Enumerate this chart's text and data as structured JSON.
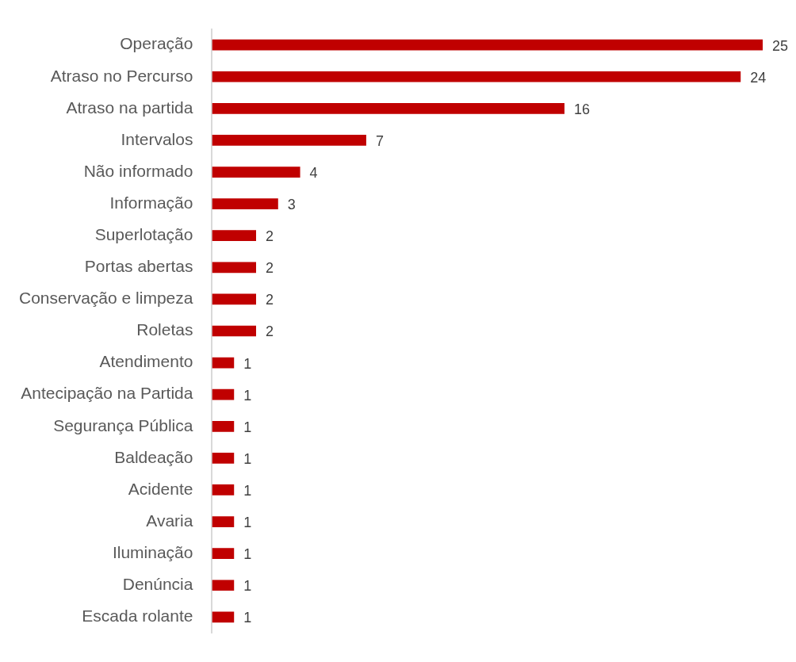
{
  "chart_data": {
    "type": "bar",
    "orientation": "horizontal",
    "categories": [
      "Operação",
      "Atraso no Percurso",
      "Atraso na partida",
      "Intervalos",
      "Não informado",
      "Informação",
      "Superlotação",
      "Portas abertas",
      "Conservação e limpeza",
      "Roletas",
      "Atendimento",
      "Antecipação na Partida",
      "Segurança Pública",
      "Baldeação",
      "Acidente",
      "Avaria",
      "Iluminação",
      "Denúncia",
      "Escada rolante"
    ],
    "values": [
      25,
      24,
      16,
      7,
      4,
      3,
      2,
      2,
      2,
      2,
      1,
      1,
      1,
      1,
      1,
      1,
      1,
      1,
      1
    ],
    "color": "#c00000",
    "data_labels": true,
    "legend": false
  }
}
